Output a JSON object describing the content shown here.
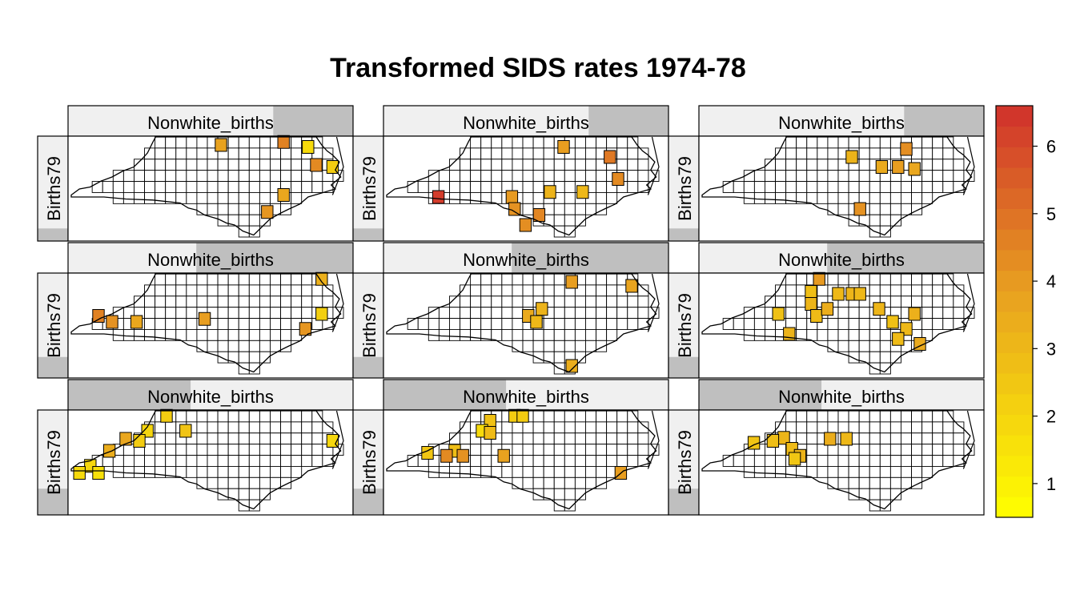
{
  "title": "Transformed SIDS rates 1974-78",
  "chart_data": {
    "type": "choropleth-small-multiples",
    "title": "Transformed SIDS rates 1974-78",
    "layout": {
      "rows": 3,
      "cols": 3
    },
    "panel_strip_label": "Nonwhite_births",
    "panel_side_label": "Births79",
    "color_scale": {
      "min": 0.5,
      "max": 6.6,
      "low_color": "#ffff00",
      "mid_color": "#e8a020",
      "high_color": "#d0302c",
      "ticks": [
        1,
        2,
        3,
        4,
        5,
        6
      ]
    },
    "panels": [
      {
        "row": 0,
        "col": 0,
        "strip_level": 0.72,
        "side_level": 0.12
      },
      {
        "row": 0,
        "col": 1,
        "strip_level": 0.72,
        "side_level": 0.12
      },
      {
        "row": 0,
        "col": 2,
        "strip_level": 0.72,
        "side_level": 0.12
      },
      {
        "row": 1,
        "col": 0,
        "strip_level": 0.45,
        "side_level": 0.2
      },
      {
        "row": 1,
        "col": 1,
        "strip_level": 0.45,
        "side_level": 0.2
      },
      {
        "row": 1,
        "col": 2,
        "strip_level": 0.45,
        "side_level": 0.2
      },
      {
        "row": 2,
        "col": 0,
        "strip_level": 0.0,
        "side_level": 0.25
      },
      {
        "row": 2,
        "col": 1,
        "strip_level": 0.0,
        "side_level": 0.25
      },
      {
        "row": 2,
        "col": 2,
        "strip_level": 0.0,
        "side_level": 0.25
      }
    ],
    "highlighted_counties": [
      [
        {
          "u": 0.55,
          "v": 0.08,
          "value": 3.8
        },
        {
          "u": 0.78,
          "v": 0.05,
          "value": 4.6
        },
        {
          "u": 0.87,
          "v": 0.1,
          "value": 1.8
        },
        {
          "u": 0.9,
          "v": 0.28,
          "value": 4.4
        },
        {
          "u": 0.96,
          "v": 0.3,
          "value": 2.3
        },
        {
          "u": 0.78,
          "v": 0.58,
          "value": 3.6
        },
        {
          "u": 0.72,
          "v": 0.75,
          "value": 4.1
        }
      ],
      [
        {
          "u": 0.65,
          "v": 0.1,
          "value": 3.9
        },
        {
          "u": 0.82,
          "v": 0.2,
          "value": 4.8
        },
        {
          "u": 0.85,
          "v": 0.42,
          "value": 4.4
        },
        {
          "u": 0.6,
          "v": 0.55,
          "value": 3.2
        },
        {
          "u": 0.46,
          "v": 0.6,
          "value": 4.0
        },
        {
          "u": 0.47,
          "v": 0.72,
          "value": 4.2
        },
        {
          "u": 0.56,
          "v": 0.78,
          "value": 4.5
        },
        {
          "u": 0.51,
          "v": 0.88,
          "value": 4.3
        },
        {
          "u": 0.72,
          "v": 0.55,
          "value": 3.0
        },
        {
          "u": 0.19,
          "v": 0.6,
          "value": 6.3
        }
      ],
      [
        {
          "u": 0.75,
          "v": 0.12,
          "value": 4.3
        },
        {
          "u": 0.72,
          "v": 0.3,
          "value": 3.9
        },
        {
          "u": 0.66,
          "v": 0.3,
          "value": 3.5
        },
        {
          "u": 0.78,
          "v": 0.32,
          "value": 3.6
        },
        {
          "u": 0.55,
          "v": 0.2,
          "value": 3.2
        },
        {
          "u": 0.58,
          "v": 0.72,
          "value": 4.2
        }
      ],
      [
        {
          "u": 0.1,
          "v": 0.42,
          "value": 4.6
        },
        {
          "u": 0.15,
          "v": 0.48,
          "value": 4.2
        },
        {
          "u": 0.24,
          "v": 0.48,
          "value": 3.6
        },
        {
          "u": 0.49,
          "v": 0.45,
          "value": 3.9
        },
        {
          "u": 0.92,
          "v": 0.4,
          "value": 2.2
        },
        {
          "u": 0.86,
          "v": 0.55,
          "value": 4.1
        },
        {
          "u": 0.92,
          "v": 0.05,
          "value": 3.3
        }
      ],
      [
        {
          "u": 0.57,
          "v": 0.35,
          "value": 3.2
        },
        {
          "u": 0.52,
          "v": 0.42,
          "value": 3.5
        },
        {
          "u": 0.55,
          "v": 0.48,
          "value": 3.0
        },
        {
          "u": 0.68,
          "v": 0.08,
          "value": 3.9
        },
        {
          "u": 0.9,
          "v": 0.12,
          "value": 3.7
        },
        {
          "u": 0.68,
          "v": 0.92,
          "value": 3.4
        }
      ],
      [
        {
          "u": 0.43,
          "v": 0.05,
          "value": 4.0
        },
        {
          "u": 0.5,
          "v": 0.2,
          "value": 3.0
        },
        {
          "u": 0.55,
          "v": 0.2,
          "value": 3.1
        },
        {
          "u": 0.58,
          "v": 0.2,
          "value": 3.0
        },
        {
          "u": 0.4,
          "v": 0.18,
          "value": 2.8
        },
        {
          "u": 0.4,
          "v": 0.3,
          "value": 3.1
        },
        {
          "u": 0.42,
          "v": 0.42,
          "value": 2.9
        },
        {
          "u": 0.46,
          "v": 0.35,
          "value": 3.4
        },
        {
          "u": 0.28,
          "v": 0.4,
          "value": 2.7
        },
        {
          "u": 0.32,
          "v": 0.6,
          "value": 3.2
        },
        {
          "u": 0.65,
          "v": 0.35,
          "value": 3.1
        },
        {
          "u": 0.7,
          "v": 0.48,
          "value": 2.7
        },
        {
          "u": 0.78,
          "v": 0.4,
          "value": 3.3
        },
        {
          "u": 0.75,
          "v": 0.55,
          "value": 3.0
        },
        {
          "u": 0.8,
          "v": 0.7,
          "value": 3.5
        },
        {
          "u": 0.72,
          "v": 0.65,
          "value": 2.9
        }
      ],
      [
        {
          "u": 0.35,
          "v": 0.05,
          "value": 2.3
        },
        {
          "u": 0.28,
          "v": 0.2,
          "value": 2.0
        },
        {
          "u": 0.25,
          "v": 0.3,
          "value": 2.3
        },
        {
          "u": 0.2,
          "v": 0.28,
          "value": 3.6
        },
        {
          "u": 0.14,
          "v": 0.4,
          "value": 3.4
        },
        {
          "u": 0.07,
          "v": 0.55,
          "value": 1.9
        },
        {
          "u": 0.1,
          "v": 0.62,
          "value": 1.6
        },
        {
          "u": 0.03,
          "v": 0.62,
          "value": 1.8
        },
        {
          "u": 0.42,
          "v": 0.2,
          "value": 2.6
        },
        {
          "u": 0.96,
          "v": 0.3,
          "value": 1.9
        }
      ],
      [
        {
          "u": 0.38,
          "v": 0.1,
          "value": 2.7
        },
        {
          "u": 0.35,
          "v": 0.2,
          "value": 1.8
        },
        {
          "u": 0.38,
          "v": 0.22,
          "value": 2.9
        },
        {
          "u": 0.25,
          "v": 0.4,
          "value": 2.8
        },
        {
          "u": 0.15,
          "v": 0.42,
          "value": 2.5
        },
        {
          "u": 0.22,
          "v": 0.45,
          "value": 4.4
        },
        {
          "u": 0.47,
          "v": 0.05,
          "value": 2.3
        },
        {
          "u": 0.5,
          "v": 0.05,
          "value": 2.3
        },
        {
          "u": 0.43,
          "v": 0.45,
          "value": 3.8
        },
        {
          "u": 0.28,
          "v": 0.45,
          "value": 4.2
        },
        {
          "u": 0.86,
          "v": 0.62,
          "value": 3.9
        }
      ],
      [
        {
          "u": 0.3,
          "v": 0.27,
          "value": 3.1
        },
        {
          "u": 0.33,
          "v": 0.38,
          "value": 2.9
        },
        {
          "u": 0.36,
          "v": 0.45,
          "value": 3.2
        },
        {
          "u": 0.19,
          "v": 0.32,
          "value": 2.6
        },
        {
          "u": 0.34,
          "v": 0.48,
          "value": 2.5
        },
        {
          "u": 0.47,
          "v": 0.28,
          "value": 3.4
        },
        {
          "u": 0.53,
          "v": 0.28,
          "value": 3.0
        },
        {
          "u": 0.26,
          "v": 0.3,
          "value": 2.8
        }
      ]
    ]
  }
}
